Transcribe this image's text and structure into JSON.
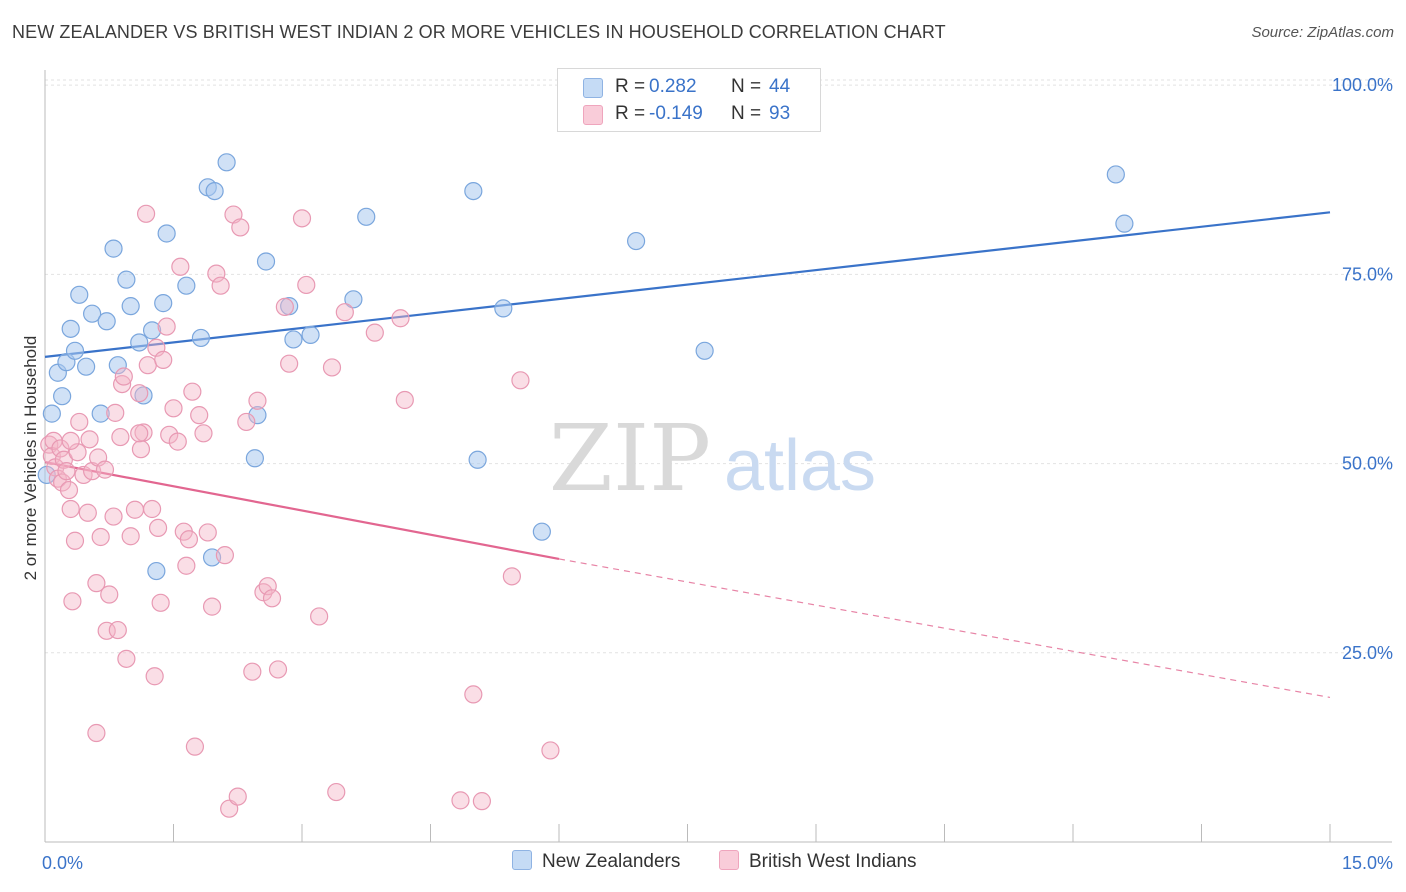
{
  "title": "NEW ZEALANDER VS BRITISH WEST INDIAN 2 OR MORE VEHICLES IN HOUSEHOLD CORRELATION CHART",
  "source": "Source: ZipAtlas.com",
  "watermark": {
    "zip": "ZIP",
    "atlas": "atlas"
  },
  "legend": {
    "r_label": "R =",
    "n_label": "N =",
    "rows": [
      {
        "r": "0.282",
        "n": "44"
      },
      {
        "r": "-0.149",
        "n": "93"
      }
    ]
  },
  "chart_data": {
    "type": "scatter",
    "title": "NEW ZEALANDER VS BRITISH WEST INDIAN 2 OR MORE VEHICLES IN HOUSEHOLD CORRELATION CHART",
    "xlabel": "",
    "ylabel": "2 or more Vehicles in Household",
    "xlim": [
      0,
      15
    ],
    "ylim": [
      0,
      102
    ],
    "x_tick_labels": [
      "0.0%",
      "15.0%"
    ],
    "y_ticks": [
      25,
      50,
      75,
      100
    ],
    "y_tick_labels": [
      "25.0%",
      "50.0%",
      "75.0%",
      "100.0%"
    ],
    "grid": true,
    "legend_position": "bottom-center",
    "series": [
      {
        "name": "New Zealanders",
        "color": "#a9c8ee",
        "line_color": "#3a73c9",
        "trend": {
          "x0": 0.0,
          "y0": 64.1,
          "x1": 15.0,
          "y1": 83.2
        },
        "points": [
          [
            0.08,
            56.6
          ],
          [
            0.15,
            62.0
          ],
          [
            0.2,
            58.9
          ],
          [
            0.25,
            63.4
          ],
          [
            0.3,
            67.8
          ],
          [
            0.35,
            64.9
          ],
          [
            0.4,
            72.3
          ],
          [
            0.48,
            62.8
          ],
          [
            0.55,
            69.8
          ],
          [
            0.65,
            56.6
          ],
          [
            0.72,
            68.8
          ],
          [
            0.8,
            78.4
          ],
          [
            0.85,
            63.0
          ],
          [
            0.95,
            74.3
          ],
          [
            1.0,
            70.8
          ],
          [
            1.1,
            66.0
          ],
          [
            1.15,
            59.0
          ],
          [
            1.25,
            67.6
          ],
          [
            1.3,
            35.8
          ],
          [
            1.38,
            71.2
          ],
          [
            1.42,
            80.4
          ],
          [
            1.65,
            73.5
          ],
          [
            1.82,
            66.6
          ],
          [
            1.9,
            86.5
          ],
          [
            1.95,
            37.6
          ],
          [
            1.98,
            86.0
          ],
          [
            2.12,
            89.8
          ],
          [
            2.45,
            50.7
          ],
          [
            2.48,
            56.4
          ],
          [
            2.58,
            76.7
          ],
          [
            2.85,
            70.8
          ],
          [
            2.9,
            66.4
          ],
          [
            3.1,
            67.0
          ],
          [
            3.6,
            71.7
          ],
          [
            3.75,
            82.6
          ],
          [
            5.0,
            86.0
          ],
          [
            5.05,
            50.5
          ],
          [
            5.35,
            70.5
          ],
          [
            5.8,
            41.0
          ],
          [
            6.9,
            79.4
          ],
          [
            7.7,
            64.9
          ],
          [
            12.5,
            88.2
          ],
          [
            12.6,
            81.7
          ],
          [
            0.02,
            48.5
          ]
        ]
      },
      {
        "name": "British West Indians",
        "color": "#f4b6c8",
        "line_color": "#e26690",
        "trend": {
          "x0": 0.0,
          "y0": 50.2,
          "x1": 6.0,
          "y1": 37.4
        },
        "trend_dashed": {
          "x0": 6.0,
          "y0": 37.4,
          "x1": 15.0,
          "y1": 19.1
        },
        "points": [
          [
            0.05,
            52.5
          ],
          [
            0.08,
            51.0
          ],
          [
            0.1,
            53.0
          ],
          [
            0.12,
            49.5
          ],
          [
            0.15,
            48.0
          ],
          [
            0.18,
            52.0
          ],
          [
            0.2,
            47.5
          ],
          [
            0.22,
            50.5
          ],
          [
            0.25,
            49.0
          ],
          [
            0.28,
            46.5
          ],
          [
            0.3,
            44.0
          ],
          [
            0.32,
            31.8
          ],
          [
            0.35,
            39.8
          ],
          [
            0.38,
            51.5
          ],
          [
            0.4,
            55.5
          ],
          [
            0.45,
            48.5
          ],
          [
            0.5,
            43.5
          ],
          [
            0.52,
            53.2
          ],
          [
            0.55,
            49.0
          ],
          [
            0.6,
            34.2
          ],
          [
            0.62,
            50.8
          ],
          [
            0.65,
            40.3
          ],
          [
            0.7,
            49.2
          ],
          [
            0.72,
            27.9
          ],
          [
            0.75,
            32.7
          ],
          [
            0.8,
            43.0
          ],
          [
            0.82,
            56.7
          ],
          [
            0.85,
            28.0
          ],
          [
            0.88,
            53.5
          ],
          [
            0.9,
            60.5
          ],
          [
            0.92,
            61.5
          ],
          [
            0.95,
            24.2
          ],
          [
            1.0,
            40.4
          ],
          [
            1.05,
            43.9
          ],
          [
            1.1,
            59.3
          ],
          [
            1.12,
            51.9
          ],
          [
            1.15,
            54.1
          ],
          [
            1.18,
            83.0
          ],
          [
            1.2,
            63.0
          ],
          [
            1.25,
            44.0
          ],
          [
            1.28,
            21.9
          ],
          [
            1.3,
            65.3
          ],
          [
            1.32,
            41.5
          ],
          [
            1.35,
            31.6
          ],
          [
            1.38,
            63.7
          ],
          [
            1.42,
            68.1
          ],
          [
            1.45,
            53.8
          ],
          [
            1.5,
            57.3
          ],
          [
            1.55,
            52.9
          ],
          [
            1.58,
            76.0
          ],
          [
            1.62,
            41.0
          ],
          [
            1.65,
            36.5
          ],
          [
            1.68,
            40.0
          ],
          [
            1.72,
            59.5
          ],
          [
            1.75,
            12.6
          ],
          [
            1.8,
            56.4
          ],
          [
            1.85,
            54.0
          ],
          [
            1.9,
            40.9
          ],
          [
            1.95,
            31.1
          ],
          [
            2.0,
            75.1
          ],
          [
            2.05,
            73.5
          ],
          [
            2.1,
            37.9
          ],
          [
            2.15,
            4.4
          ],
          [
            2.2,
            82.9
          ],
          [
            2.25,
            6.0
          ],
          [
            2.28,
            81.2
          ],
          [
            2.35,
            55.5
          ],
          [
            2.42,
            22.5
          ],
          [
            2.48,
            58.3
          ],
          [
            2.55,
            33.0
          ],
          [
            2.6,
            33.8
          ],
          [
            2.65,
            32.2
          ],
          [
            2.72,
            22.8
          ],
          [
            2.8,
            70.7
          ],
          [
            2.85,
            63.2
          ],
          [
            3.0,
            82.4
          ],
          [
            3.05,
            73.6
          ],
          [
            3.2,
            29.8
          ],
          [
            3.35,
            62.7
          ],
          [
            3.4,
            6.6
          ],
          [
            3.5,
            70.0
          ],
          [
            3.85,
            67.3
          ],
          [
            4.15,
            69.2
          ],
          [
            4.2,
            58.4
          ],
          [
            4.85,
            5.5
          ],
          [
            5.0,
            19.5
          ],
          [
            5.1,
            5.4
          ],
          [
            5.45,
            35.1
          ],
          [
            5.55,
            61.0
          ],
          [
            5.9,
            12.1
          ],
          [
            0.6,
            14.4
          ],
          [
            1.1,
            54.0
          ],
          [
            0.3,
            53.0
          ]
        ]
      }
    ]
  }
}
